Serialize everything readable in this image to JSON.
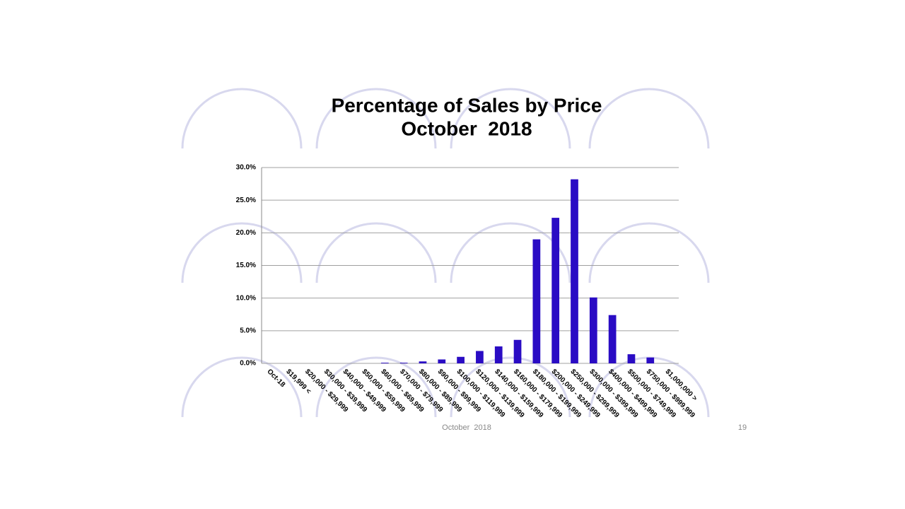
{
  "chart_data": {
    "type": "bar",
    "title": "Percentage of Sales by Price",
    "subtitle": "October  2018",
    "categories": [
      "Oct-18",
      "$19,999 <",
      "$20,000 - $29,999",
      "$30,000 - $39,999",
      "$40,000 - $49,999",
      "$50,000 - $59,999",
      "$60,000 - $69,999",
      "$70,000 - $79,999",
      "$80,000 - $89,999",
      "$90,000 - $99,999",
      "$100,000 - $119,999",
      "$120,000 - $139,999",
      "$140,000 - $159,999",
      "$160,000 - $179,999",
      "$180,000 - $199,999",
      "$200,000 - $249,999",
      "$250,000 - $299,999",
      "$300,000 - $399,999",
      "$400,000 - $499,999",
      "$500,000 - $749,999",
      "$750,000 - $999,999",
      "$1,000,000 >"
    ],
    "values": [
      0,
      0,
      0,
      0,
      0,
      0,
      0.1,
      0.1,
      0.3,
      0.6,
      1.0,
      1.9,
      2.6,
      3.6,
      19.0,
      22.3,
      28.2,
      10.1,
      7.4,
      1.4,
      0.9,
      0
    ],
    "color": "#2a0cc4",
    "ylim": [
      0,
      30
    ],
    "yticks": [
      {
        "value": 0,
        "label": "0.0%"
      },
      {
        "value": 5,
        "label": "5.0%"
      },
      {
        "value": 10,
        "label": "10.0%"
      },
      {
        "value": 15,
        "label": "15.0%"
      },
      {
        "value": 20,
        "label": "20.0%"
      },
      {
        "value": 25,
        "label": "25.0%"
      },
      {
        "value": 30,
        "label": "30.0%"
      }
    ],
    "grid": true
  },
  "footer": {
    "text": "October  2018",
    "page": "19"
  }
}
